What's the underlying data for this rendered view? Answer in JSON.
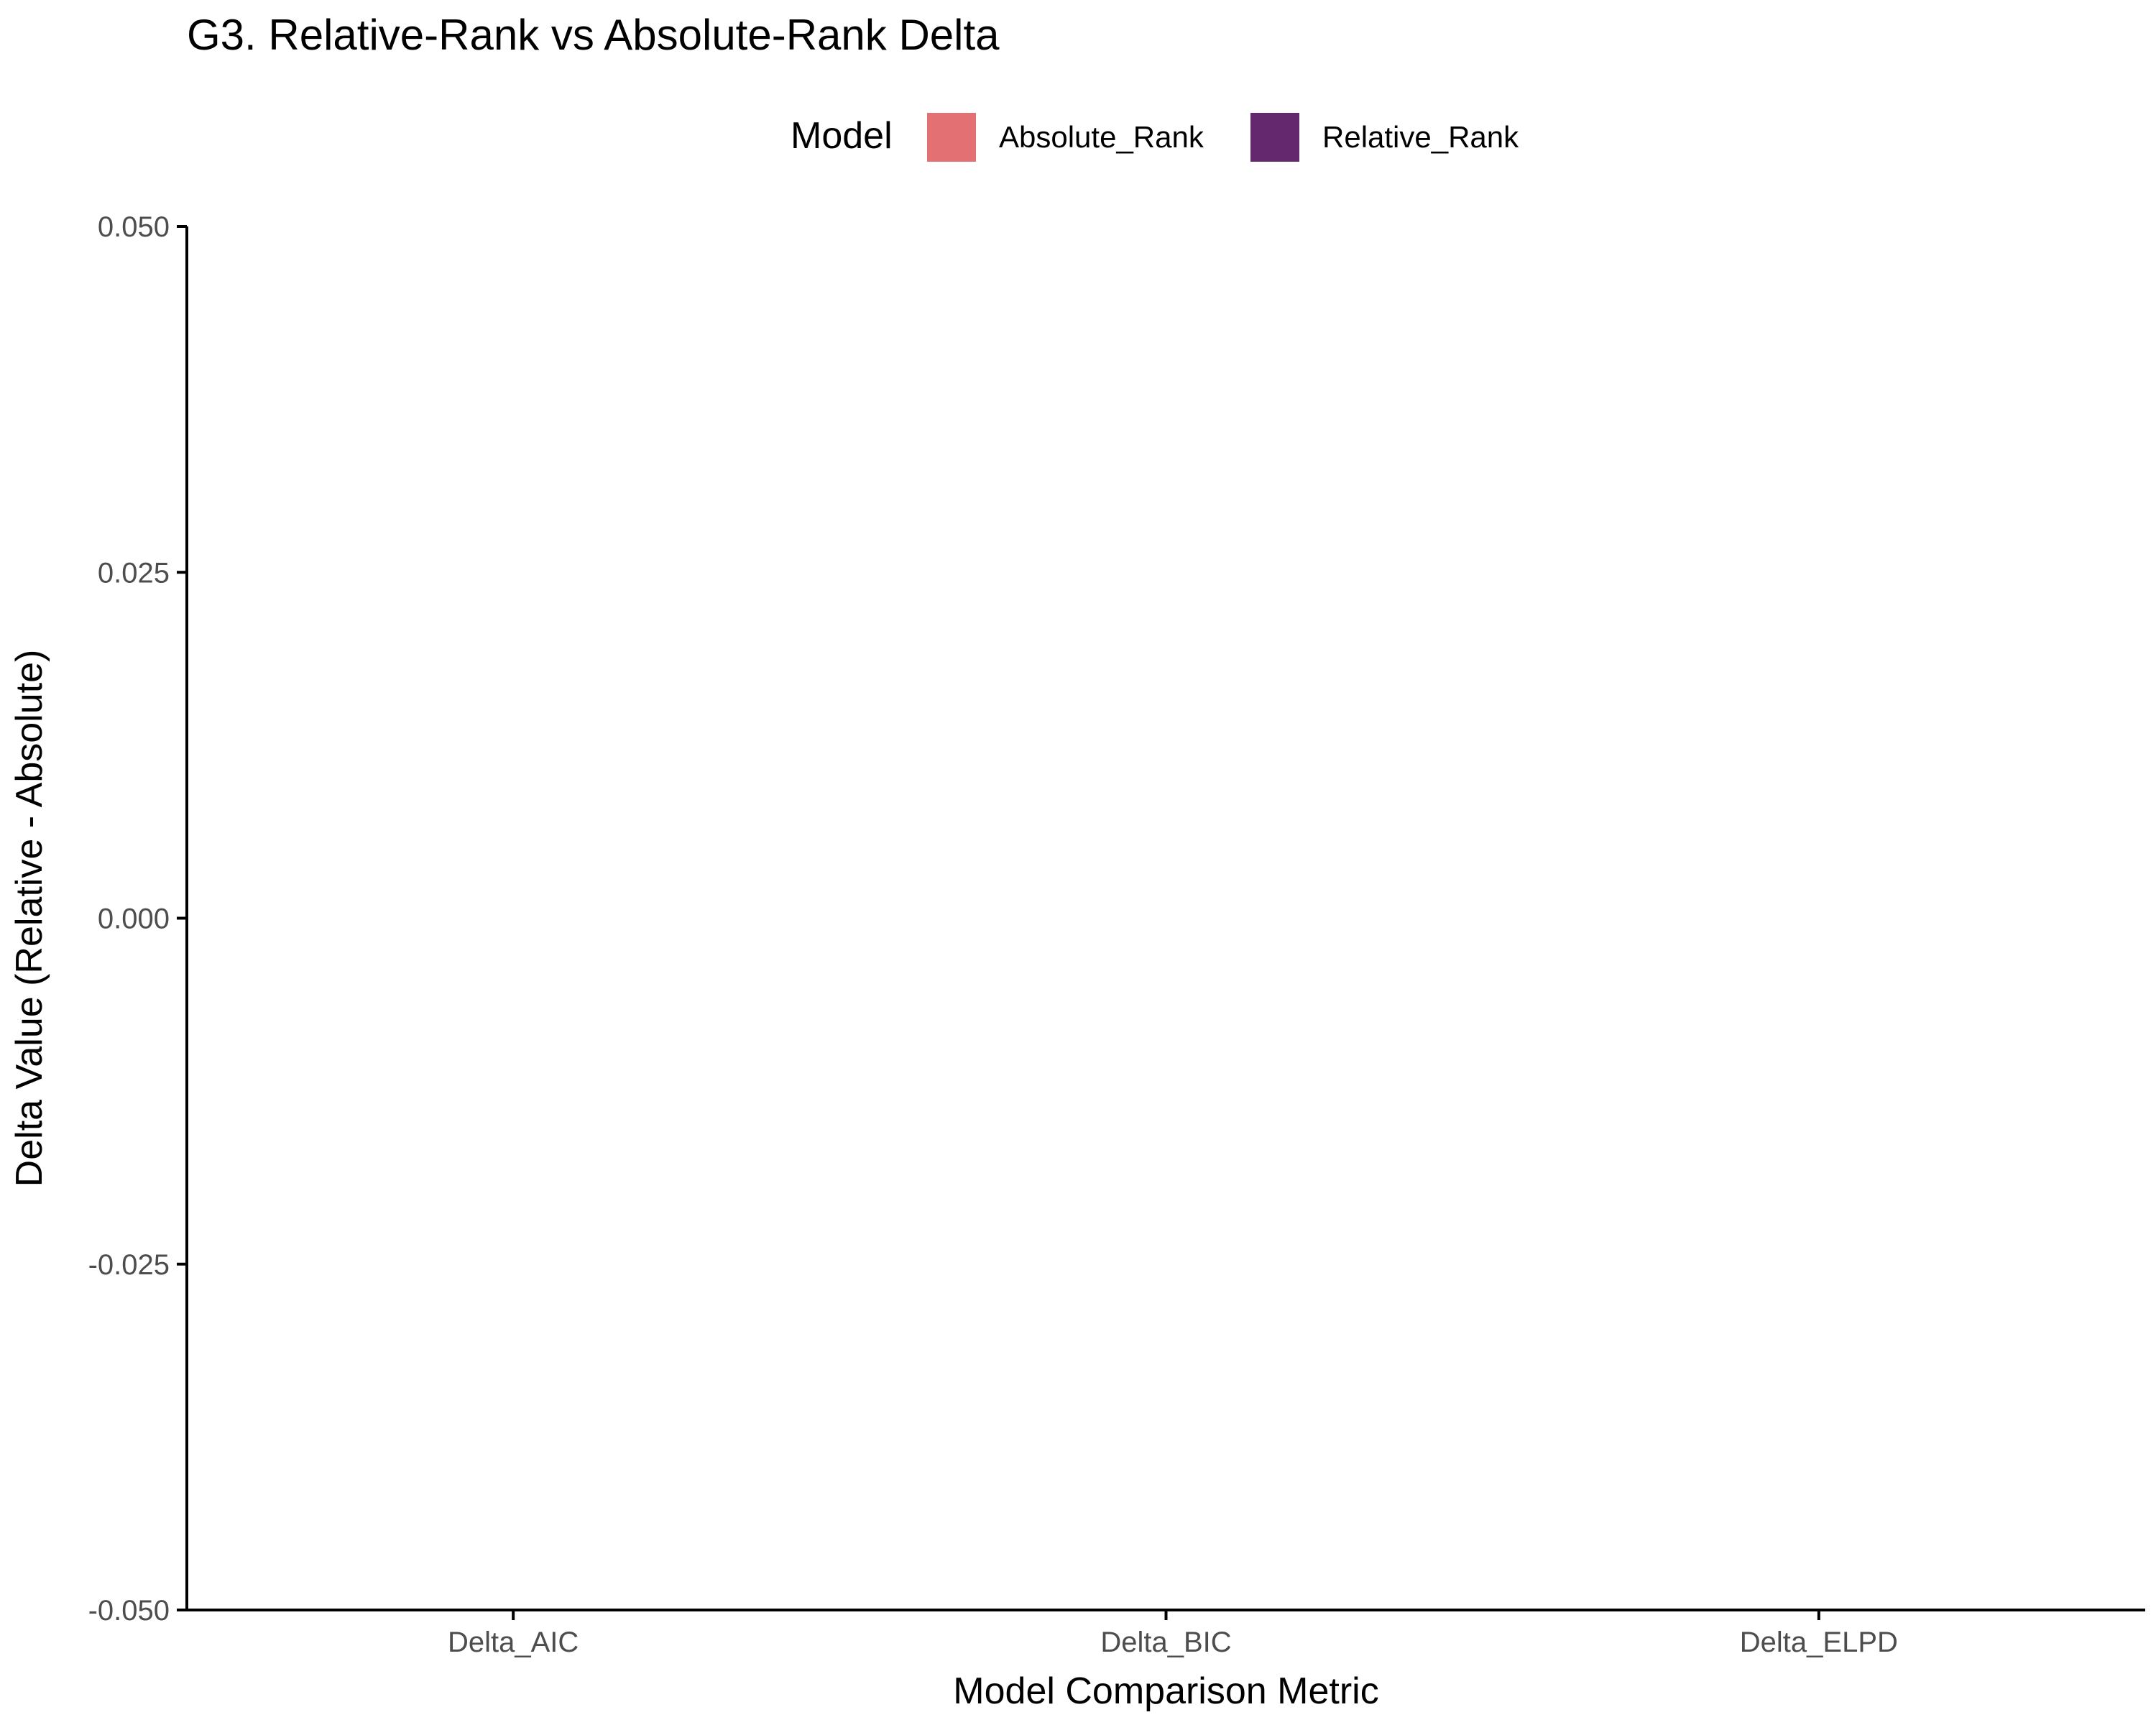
{
  "chart_data": {
    "type": "bar",
    "title": "G3. Relative-Rank vs Absolute-Rank Delta",
    "xlabel": "Model Comparison Metric",
    "ylabel": "Delta Value (Relative - Absolute)",
    "categories": [
      "Delta_AIC",
      "Delta_BIC",
      "Delta_ELPD"
    ],
    "ylim": [
      -0.05,
      0.05
    ],
    "yticks": [
      "0.050",
      "0.025",
      "0.000",
      "-0.025",
      "-0.050"
    ],
    "ytick_values": [
      0.05,
      0.025,
      0.0,
      -0.025,
      -0.05
    ],
    "legend": {
      "title": "Model",
      "placement": "top",
      "entries": [
        {
          "label": "Absolute_Rank",
          "color": "#E37173"
        },
        {
          "label": "Relative_Rank",
          "color": "#63286D"
        }
      ]
    },
    "series": [
      {
        "name": "Absolute_Rank",
        "color": "#E37173",
        "values": [
          null,
          null,
          null
        ]
      },
      {
        "name": "Relative_Rank",
        "color": "#63286D",
        "values": [
          null,
          null,
          null
        ]
      }
    ],
    "grid": false
  }
}
